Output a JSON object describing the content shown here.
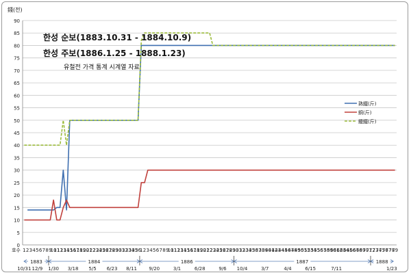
{
  "chart_data": {
    "type": "line",
    "ylabel": "錢(전)",
    "ylim": [
      0,
      90
    ],
    "ytick_step": 5,
    "grid": true,
    "title_lines": [
      "한성 순보(1883.10.31 - 1884.10.9)",
      "한성 주보(1886.1.25 - 1888.1.23)"
    ],
    "subtitle": "유철전 가격 통계 시계열 자료",
    "x_first_label": "호수",
    "x": [
      1,
      2,
      3,
      4,
      5,
      6,
      7,
      8,
      9,
      10,
      11,
      12,
      13,
      14,
      15,
      16,
      17,
      18,
      19,
      20,
      21,
      22,
      23,
      24,
      25,
      26,
      27,
      28,
      29,
      30,
      31,
      32,
      33,
      34,
      35,
      36,
      1,
      2,
      3,
      4,
      5,
      6,
      7,
      8,
      9,
      10,
      11,
      12,
      13,
      14,
      15,
      16,
      17,
      18,
      19,
      20,
      21,
      22,
      23,
      24,
      25,
      26,
      27,
      28,
      29,
      30,
      31,
      32,
      33,
      34,
      35,
      36,
      37,
      38,
      39,
      40,
      41,
      42,
      43,
      44,
      45,
      46,
      47,
      48,
      49,
      50,
      51,
      52,
      53,
      54,
      55,
      56,
      57,
      58,
      59,
      60,
      61,
      62,
      63,
      64,
      65,
      66,
      67,
      68,
      69,
      70,
      71,
      72,
      73,
      74,
      75,
      76,
      77,
      78,
      79
    ],
    "series": [
      {
        "name": "熟鐵(斤)",
        "color": "#3f6fb0",
        "dash": false,
        "values": [
          null,
          14,
          14,
          14,
          14,
          14,
          14,
          14,
          14,
          14,
          15,
          15,
          30,
          14,
          50,
          50,
          50,
          50,
          50,
          50,
          50,
          50,
          50,
          50,
          50,
          50,
          50,
          50,
          50,
          50,
          50,
          50,
          50,
          50,
          50,
          50,
          80,
          80,
          80,
          80,
          80,
          80,
          80,
          80,
          80,
          80,
          80,
          80,
          80,
          80,
          80,
          80,
          80,
          80,
          80,
          80,
          80,
          80,
          80,
          80,
          80,
          80,
          80,
          80,
          80,
          80,
          80,
          80,
          80,
          80,
          80,
          80,
          80,
          80,
          80,
          80,
          80,
          80,
          80,
          80,
          80,
          80,
          80,
          80,
          80,
          80,
          80,
          80,
          80,
          80,
          80,
          80,
          80,
          80,
          80,
          80,
          80,
          80,
          80,
          80,
          80,
          80,
          80,
          80,
          80,
          80,
          80,
          80,
          80,
          80,
          80,
          80,
          80,
          80,
          80
        ]
      },
      {
        "name": "銅(斤)",
        "color": "#c0403c",
        "dash": false,
        "values": [
          10,
          10,
          10,
          10,
          10,
          10,
          10,
          10,
          10,
          18,
          10,
          10,
          15,
          18,
          15,
          15,
          15,
          15,
          15,
          15,
          15,
          15,
          15,
          15,
          15,
          15,
          15,
          15,
          15,
          15,
          15,
          15,
          15,
          15,
          15,
          15,
          25,
          25,
          30,
          30,
          30,
          30,
          30,
          30,
          30,
          30,
          30,
          30,
          30,
          30,
          30,
          30,
          30,
          30,
          30,
          30,
          30,
          30,
          30,
          30,
          30,
          30,
          30,
          30,
          30,
          30,
          30,
          30,
          30,
          30,
          30,
          30,
          30,
          30,
          30,
          30,
          30,
          30,
          30,
          30,
          30,
          30,
          30,
          30,
          30,
          30,
          30,
          30,
          30,
          30,
          30,
          30,
          30,
          30,
          30,
          30,
          30,
          30,
          30,
          30,
          30,
          30,
          30,
          30,
          30,
          30,
          30,
          30,
          30,
          30,
          30,
          30,
          30,
          30,
          30
        ]
      },
      {
        "name": "鑞鐵(斤)",
        "color": "#9bbb3b",
        "dash": true,
        "values": [
          40,
          40,
          40,
          40,
          40,
          40,
          40,
          40,
          40,
          40,
          40,
          40,
          50,
          40,
          50,
          50,
          50,
          50,
          50,
          50,
          50,
          50,
          50,
          50,
          50,
          50,
          50,
          50,
          50,
          50,
          50,
          50,
          50,
          50,
          50,
          50,
          82,
          85,
          85,
          85,
          85,
          85,
          85,
          85,
          85,
          85,
          85,
          85,
          85,
          85,
          85,
          85,
          85,
          85,
          85,
          85,
          85,
          85,
          80,
          80,
          80,
          80,
          80,
          80,
          80,
          80,
          80,
          80,
          80,
          80,
          80,
          80,
          80,
          80,
          80,
          80,
          80,
          80,
          80,
          80,
          80,
          80,
          80,
          80,
          80,
          80,
          80,
          80,
          80,
          80,
          80,
          80,
          80,
          80,
          80,
          80,
          80,
          80,
          80,
          80,
          80,
          80,
          80,
          80,
          80,
          80,
          80,
          80,
          80,
          80,
          80,
          80,
          80,
          80,
          80
        ]
      }
    ],
    "year_spans": [
      {
        "label": "1883",
        "from": 0,
        "to": 8
      },
      {
        "label": "1884",
        "from": 8,
        "to": 36
      },
      {
        "label": "1886",
        "from": 36,
        "to": 65
      },
      {
        "label": "1887",
        "from": 65,
        "to": 107
      },
      {
        "label": "1888",
        "from": 107,
        "to": 114
      }
    ],
    "date_labels": [
      {
        "label": "10/31",
        "idx": 0
      },
      {
        "label": "12/9",
        "idx": 4
      },
      {
        "label": "1/30",
        "idx": 9
      },
      {
        "label": "3/18",
        "idx": 15
      },
      {
        "label": "5/5",
        "idx": 21
      },
      {
        "label": "6/23",
        "idx": 27
      },
      {
        "label": "8/11",
        "idx": 33
      },
      {
        "label": "9/20",
        "idx": 40
      },
      {
        "label": "3/1",
        "idx": 47
      },
      {
        "label": "6/28",
        "idx": 54
      },
      {
        "label": "9/6",
        "idx": 61
      },
      {
        "label": "10/4",
        "idx": 67
      },
      {
        "label": "3/7",
        "idx": 74
      },
      {
        "label": "4/4",
        "idx": 81
      },
      {
        "label": "6/15",
        "idx": 88
      },
      {
        "label": "7/11",
        "idx": 96
      },
      {
        "label": "1/23",
        "idx": 113
      }
    ]
  }
}
